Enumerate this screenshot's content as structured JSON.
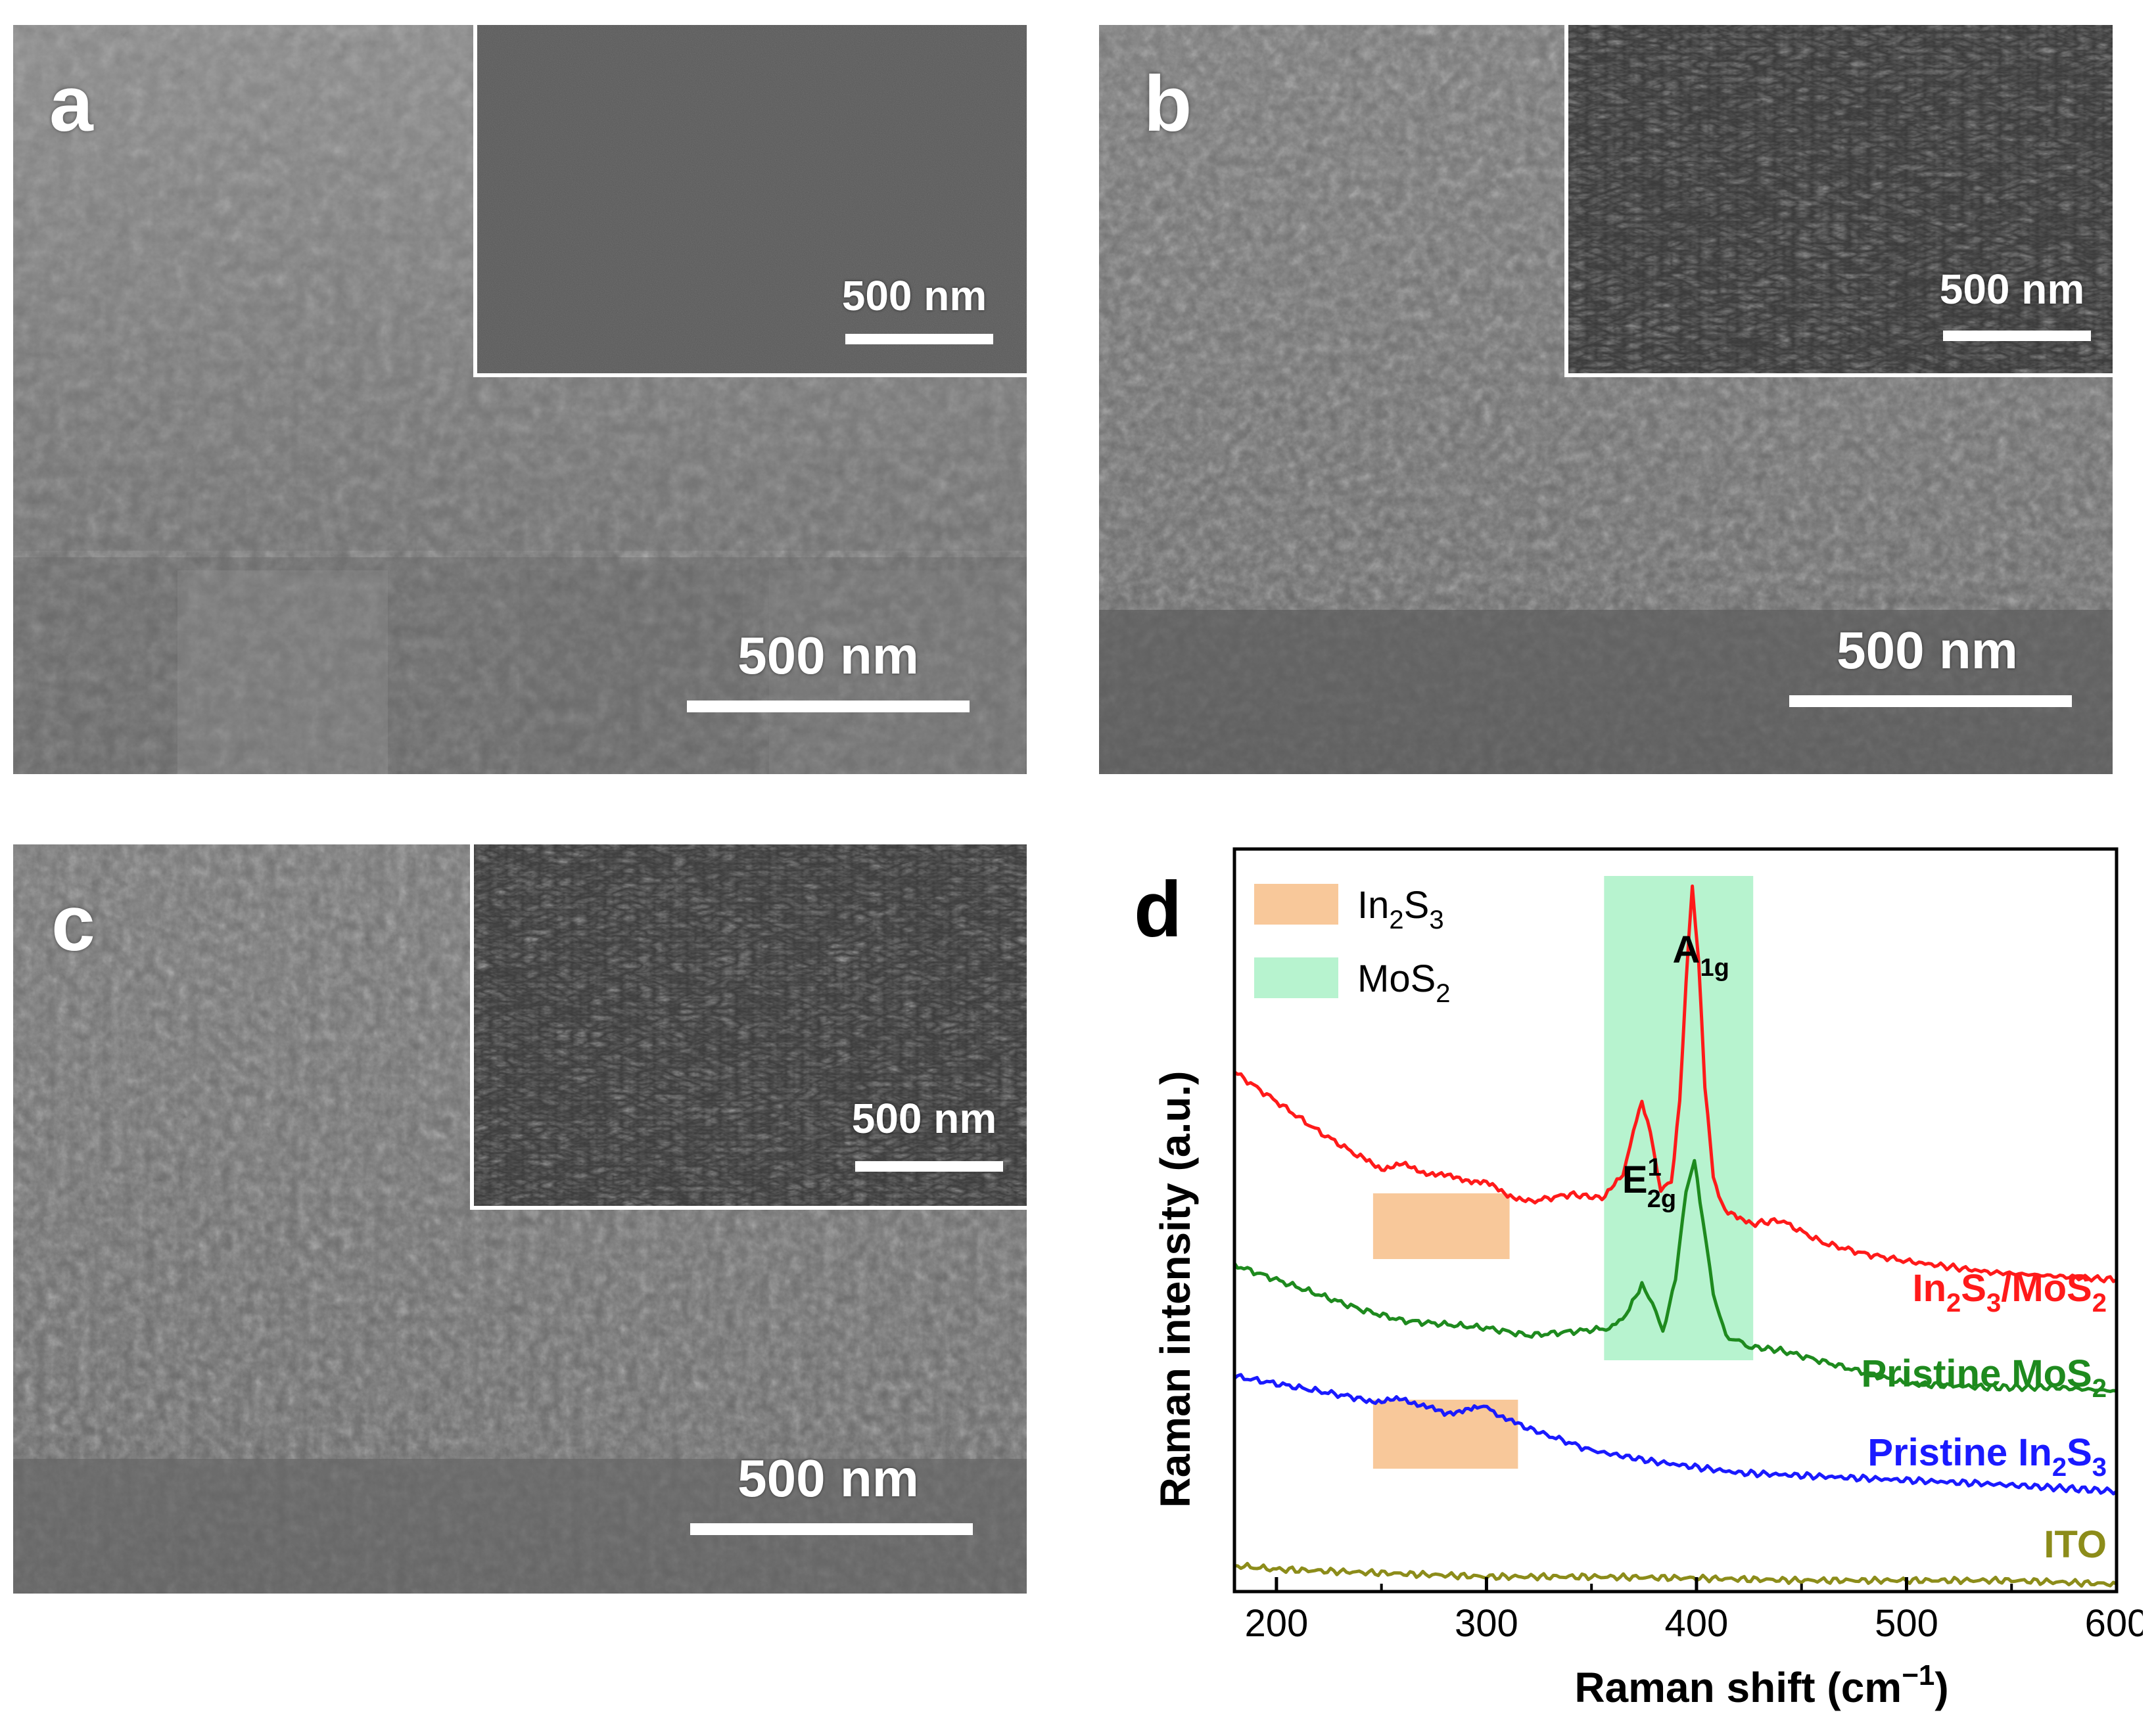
{
  "panels": [
    {
      "letter": "a",
      "inset_scale": "500 nm",
      "main_scale": "500 nm"
    },
    {
      "letter": "b",
      "inset_scale": "500 nm",
      "main_scale": "500 nm"
    },
    {
      "letter": "c",
      "inset_scale": "500 nm",
      "main_scale": "500 nm"
    }
  ],
  "chart_panel_letter": "d",
  "chart_data": {
    "type": "line",
    "xlabel": "Raman shift (cm",
    "xlabel_sup": "−1",
    "xlabel_end": ")",
    "ylabel": "Raman intensity (a.u.)",
    "xlim": [
      180,
      600
    ],
    "xticks": [
      "200",
      "300",
      "400",
      "500",
      "600"
    ],
    "legend": [
      {
        "base": "In",
        "sub1": "2",
        "mid": "S",
        "sub2": "3",
        "color": "#f8c89a"
      },
      {
        "base": "MoS",
        "sub1": "2",
        "mid": "",
        "sub2": "",
        "color": "#b7f3cf"
      }
    ],
    "highlight_regions": [
      {
        "kind": "In2S3",
        "x": [
          246,
          311
        ],
        "on_series": "In2S3/MoS2"
      },
      {
        "kind": "In2S3",
        "x": [
          246,
          315
        ],
        "on_series": "Pristine In2S3"
      },
      {
        "kind": "MoS2",
        "x": [
          356,
          427
        ],
        "on_series": "all"
      }
    ],
    "peak_labels": [
      {
        "base": "E",
        "sup": "1",
        "sub": "2g",
        "x": 374
      },
      {
        "base": "A",
        "sup": "",
        "sub": "1g",
        "x": 398
      }
    ],
    "series": [
      {
        "name": "In2S3/MoS2",
        "label_parts": [
          [
            "In",
            false
          ],
          [
            "2",
            true
          ],
          [
            "S",
            false
          ],
          [
            "3",
            true
          ],
          [
            "/MoS",
            false
          ],
          [
            "2",
            true
          ]
        ],
        "color": "#ff1a1a",
        "x": [
          180,
          200,
          220,
          240,
          250,
          260,
          270,
          280,
          290,
          300,
          310,
          320,
          340,
          355,
          365,
          370,
          374,
          378,
          383,
          388,
          392,
          395,
          398,
          401,
          404,
          408,
          412,
          418,
          425,
          440,
          460,
          480,
          500,
          540,
          570,
          600
        ],
        "y": [
          0.7,
          0.66,
          0.62,
          0.585,
          0.57,
          0.575,
          0.565,
          0.56,
          0.555,
          0.55,
          0.535,
          0.525,
          0.535,
          0.53,
          0.56,
          0.62,
          0.66,
          0.62,
          0.54,
          0.55,
          0.66,
          0.82,
          0.95,
          0.85,
          0.68,
          0.56,
          0.52,
          0.505,
          0.495,
          0.5,
          0.47,
          0.455,
          0.445,
          0.43,
          0.425,
          0.42
        ]
      },
      {
        "name": "Pristine MoS2",
        "label_parts": [
          [
            "Pristine MoS",
            false
          ],
          [
            "2",
            true
          ]
        ],
        "color": "#1e8a1e",
        "x": [
          180,
          200,
          220,
          240,
          260,
          280,
          300,
          320,
          340,
          360,
          368,
          374,
          379,
          384,
          390,
          395,
          399,
          403,
          408,
          414,
          425,
          440,
          460,
          480,
          500,
          540,
          570,
          600
        ],
        "y": [
          0.44,
          0.42,
          0.4,
          0.38,
          0.365,
          0.36,
          0.355,
          0.345,
          0.35,
          0.355,
          0.38,
          0.415,
          0.385,
          0.35,
          0.42,
          0.54,
          0.58,
          0.5,
          0.4,
          0.345,
          0.33,
          0.325,
          0.31,
          0.295,
          0.28,
          0.275,
          0.275,
          0.27
        ]
      },
      {
        "name": "Pristine In2S3",
        "label_parts": [
          [
            "Pristine In",
            false
          ],
          [
            "2",
            true
          ],
          [
            "S",
            false
          ],
          [
            "3",
            true
          ]
        ],
        "color": "#1a1aff",
        "x": [
          180,
          200,
          220,
          240,
          250,
          260,
          270,
          280,
          290,
          297,
          305,
          315,
          330,
          350,
          380,
          420,
          460,
          500,
          540,
          600
        ],
        "y": [
          0.29,
          0.28,
          0.27,
          0.26,
          0.255,
          0.26,
          0.25,
          0.24,
          0.245,
          0.25,
          0.24,
          0.225,
          0.21,
          0.19,
          0.175,
          0.16,
          0.155,
          0.15,
          0.145,
          0.135
        ]
      },
      {
        "name": "ITO",
        "label_parts": [
          [
            "ITO",
            false
          ]
        ],
        "color": "#8c8c1a",
        "x": [
          180,
          200,
          250,
          300,
          350,
          400,
          450,
          500,
          550,
          600
        ],
        "y": [
          0.035,
          0.03,
          0.025,
          0.02,
          0.02,
          0.018,
          0.015,
          0.015,
          0.015,
          0.01
        ]
      }
    ]
  }
}
